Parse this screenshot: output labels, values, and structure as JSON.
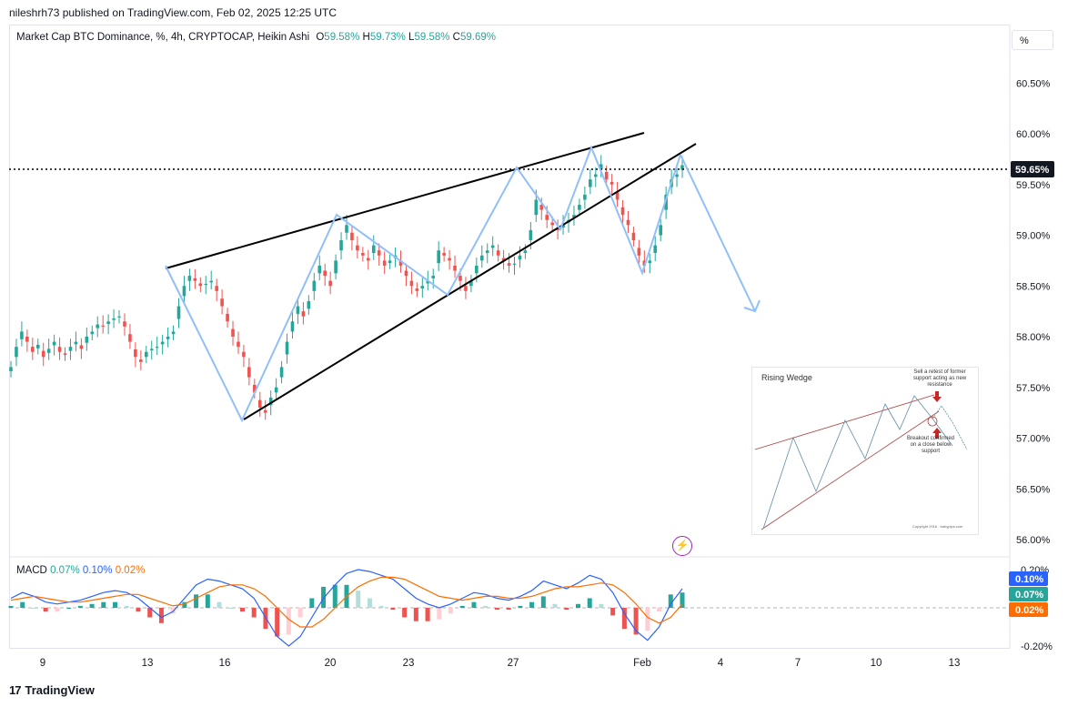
{
  "header": {
    "published": "nileshrh73 published on TradingView.com, Feb 02, 2025 12:25 UTC"
  },
  "legend": {
    "symbol": "Market Cap BTC Dominance, %, 4h, CRYPTOCAP, Heikin Ashi",
    "open_label": "O",
    "open": "59.58%",
    "high_label": "H",
    "high": "59.73%",
    "low_label": "L",
    "low": "59.58%",
    "close_label": "C",
    "close": "59.69%"
  },
  "scale_button": "%",
  "price_axis": {
    "ticks": [
      "60.50%",
      "60.00%",
      "59.50%",
      "59.00%",
      "58.50%",
      "58.00%",
      "57.50%",
      "57.00%",
      "56.50%",
      "56.00%"
    ],
    "current_price": "59.65%"
  },
  "macd": {
    "label": "MACD",
    "hist": "0.07%",
    "macd": "0.10%",
    "signal": "0.02%",
    "axis_ticks": [
      "0.20%",
      "-0.20%"
    ],
    "badges": [
      "0.10%",
      "0.07%",
      "0.02%"
    ]
  },
  "time_axis": {
    "ticks": [
      "9",
      "13",
      "16",
      "20",
      "23",
      "27",
      "Feb",
      "4",
      "7",
      "10",
      "13"
    ]
  },
  "inset": {
    "title": "Rising Wedge",
    "note_top": "Sell a retest of former support acting as new resistance",
    "note_bottom": "Breakout confirmed on a close below support",
    "copyright": "Copyright 2016 - babypips.com"
  },
  "footer": {
    "brand": "TradingView"
  },
  "colors": {
    "up": "#26a69a",
    "down": "#ef5350",
    "wedge_line": "#000000",
    "pattern_line": "#90bff9",
    "macd_line": "#2962ff",
    "signal_line": "#ff6d00",
    "hist_up": "#26a69a",
    "hist_up_light": "#b2dfdb",
    "hist_down": "#ef5350",
    "hist_down_light": "#ffcdd2"
  },
  "chart_data": {
    "type": "candlestick",
    "title": "Market Cap BTC Dominance, %, 4h, CRYPTOCAP, Heikin Ashi",
    "ylim": [
      55.95,
      60.85
    ],
    "x_ticks": [
      "9",
      "13",
      "16",
      "20",
      "23",
      "27",
      "Feb",
      "4",
      "7",
      "10",
      "13"
    ],
    "closes": [
      57.7,
      57.9,
      58.05,
      57.95,
      57.85,
      57.92,
      57.8,
      57.88,
      57.95,
      57.85,
      57.82,
      57.9,
      57.95,
      57.88,
      58.0,
      58.05,
      58.12,
      58.1,
      58.15,
      58.18,
      58.2,
      58.1,
      57.95,
      57.8,
      57.75,
      57.85,
      57.88,
      57.9,
      57.95,
      58.0,
      58.05,
      58.3,
      58.5,
      58.6,
      58.55,
      58.5,
      58.52,
      58.55,
      58.45,
      58.3,
      58.15,
      58.0,
      57.9,
      57.8,
      57.6,
      57.45,
      57.3,
      57.25,
      57.4,
      57.5,
      57.7,
      57.95,
      58.15,
      58.3,
      58.2,
      58.35,
      58.55,
      58.7,
      58.6,
      58.5,
      58.75,
      58.95,
      59.1,
      58.95,
      58.85,
      58.8,
      58.75,
      58.9,
      58.8,
      58.7,
      58.75,
      58.8,
      58.7,
      58.6,
      58.5,
      58.45,
      58.5,
      58.55,
      58.6,
      58.85,
      58.8,
      58.75,
      58.65,
      58.55,
      58.45,
      58.55,
      58.7,
      58.8,
      58.85,
      58.9,
      58.8,
      58.75,
      58.7,
      58.72,
      58.8,
      58.85,
      59.05,
      59.35,
      59.25,
      59.15,
      59.1,
      59.05,
      59.1,
      59.15,
      59.2,
      59.3,
      59.4,
      59.55,
      59.6,
      59.7,
      59.55,
      59.5,
      59.35,
      59.2,
      59.1,
      58.95,
      58.8,
      58.7,
      58.75,
      58.9,
      59.1,
      59.4,
      59.55,
      59.6,
      59.69
    ],
    "projection": [
      {
        "x": "Feb 02",
        "y": 59.65
      },
      {
        "x": "Feb 05",
        "y": 58.15
      }
    ],
    "wedge": {
      "resistance": [
        {
          "x": "Jan 13",
          "y": 58.65
        },
        {
          "x": "Feb 01",
          "y": 60.0
        }
      ],
      "support": [
        {
          "x": "Jan 16",
          "y": 57.2
        },
        {
          "x": "Feb 02",
          "y": 59.9
        }
      ]
    },
    "current_price": 59.65,
    "macd": {
      "ylim": [
        -0.25,
        0.25
      ],
      "macd": [
        0.05,
        0.08,
        0.06,
        0.03,
        0.02,
        0.03,
        0.04,
        0.06,
        0.08,
        0.09,
        0.08,
        0.05,
        0.0,
        -0.05,
        -0.02,
        0.05,
        0.12,
        0.15,
        0.14,
        0.12,
        0.1,
        0.05,
        -0.05,
        -0.15,
        -0.2,
        -0.15,
        -0.05,
        0.05,
        0.12,
        0.18,
        0.2,
        0.19,
        0.17,
        0.15,
        0.1,
        0.05,
        0.02,
        0.0,
        0.02,
        0.05,
        0.08,
        0.07,
        0.05,
        0.04,
        0.06,
        0.09,
        0.14,
        0.12,
        0.1,
        0.13,
        0.17,
        0.15,
        0.08,
        -0.03,
        -0.12,
        -0.17,
        -0.1,
        0.02,
        0.1
      ],
      "signal": [
        0.04,
        0.05,
        0.06,
        0.05,
        0.04,
        0.03,
        0.03,
        0.04,
        0.05,
        0.06,
        0.07,
        0.07,
        0.05,
        0.03,
        0.01,
        0.02,
        0.05,
        0.08,
        0.11,
        0.12,
        0.12,
        0.1,
        0.06,
        0.0,
        -0.06,
        -0.1,
        -0.1,
        -0.06,
        0.0,
        0.06,
        0.11,
        0.14,
        0.16,
        0.16,
        0.15,
        0.12,
        0.09,
        0.06,
        0.05,
        0.04,
        0.05,
        0.06,
        0.06,
        0.05,
        0.05,
        0.06,
        0.08,
        0.1,
        0.11,
        0.11,
        0.12,
        0.13,
        0.12,
        0.08,
        0.02,
        -0.05,
        -0.08,
        -0.05,
        0.02
      ]
    }
  }
}
